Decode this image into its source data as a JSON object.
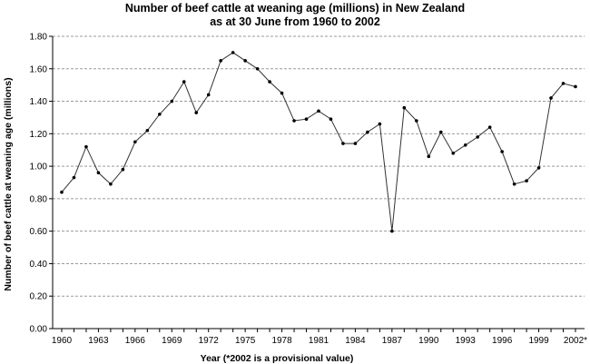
{
  "chart_data": {
    "type": "line",
    "title": "Number of beef cattle at weaning age (millions) in New Zealand",
    "subtitle": "as at 30 June from 1960 to 2002",
    "xlabel": "Year (*2002 is a provisional value)",
    "ylabel": "Number of beef cattle at weaning age (millions)",
    "ylim": [
      0,
      1.8
    ],
    "yticks": [
      "0.00",
      "0.20",
      "0.40",
      "0.60",
      "0.80",
      "1.00",
      "1.20",
      "1.40",
      "1.60",
      "1.80"
    ],
    "xticks": [
      "1960",
      "1963",
      "1966",
      "1969",
      "1972",
      "1975",
      "1978",
      "1981",
      "1984",
      "1987",
      "1990",
      "1993",
      "1996",
      "1999",
      "2002*"
    ],
    "grid": true,
    "x": [
      1960,
      1961,
      1962,
      1963,
      1964,
      1965,
      1966,
      1967,
      1968,
      1969,
      1970,
      1971,
      1972,
      1973,
      1974,
      1975,
      1976,
      1977,
      1978,
      1979,
      1980,
      1981,
      1982,
      1983,
      1984,
      1985,
      1986,
      1987,
      1988,
      1989,
      1990,
      1991,
      1992,
      1993,
      1994,
      1995,
      1996,
      1997,
      1998,
      1999,
      2000,
      2001,
      2002
    ],
    "series": [
      {
        "values": [
          0.84,
          0.93,
          1.12,
          0.96,
          0.89,
          0.98,
          1.15,
          1.22,
          1.32,
          1.4,
          1.52,
          1.33,
          1.44,
          1.65,
          1.7,
          1.65,
          1.6,
          1.52,
          1.45,
          1.28,
          1.29,
          1.34,
          1.29,
          1.14,
          1.14,
          1.21,
          1.26,
          0.6,
          1.36,
          1.28,
          1.06,
          1.21,
          1.08,
          1.13,
          1.18,
          1.24,
          1.09,
          0.89,
          0.91,
          0.99,
          1.42,
          1.51,
          1.49
        ]
      }
    ]
  }
}
